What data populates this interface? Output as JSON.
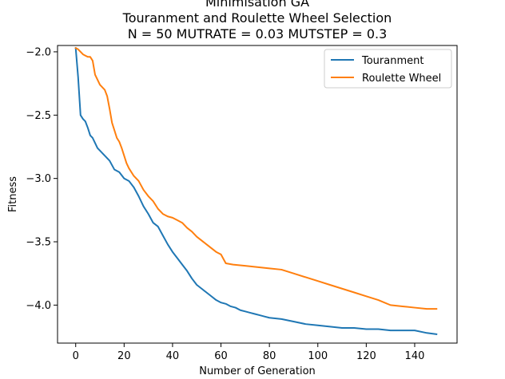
{
  "chart_data": {
    "type": "line",
    "title_lines": [
      "Minimisation GA",
      "Touranment and Roulette Wheel Selection",
      "N = 50 MUTRATE = 0.03 MUTSTEP = 0.3"
    ],
    "xlabel": "Number of Generation",
    "ylabel": "Fitness",
    "xlim": [
      -7.5,
      157.5
    ],
    "ylim": [
      -4.3,
      -1.95
    ],
    "xticks": [
      0,
      20,
      40,
      60,
      80,
      100,
      120,
      140
    ],
    "xtick_labels": [
      "0",
      "20",
      "40",
      "60",
      "80",
      "100",
      "120",
      "140"
    ],
    "yticks": [
      -2.0,
      -2.5,
      -3.0,
      -3.5,
      -4.0
    ],
    "ytick_labels": [
      "−2.0",
      "−2.5",
      "−3.0",
      "−3.5",
      "−4.0"
    ],
    "grid": false,
    "legend": "top-right",
    "series": [
      {
        "name": "Touranment",
        "color": "#1f77b4",
        "x": [
          0,
          1,
          2,
          3,
          4,
          5,
          6,
          7,
          8,
          9,
          10,
          12,
          14,
          16,
          18,
          20,
          22,
          24,
          26,
          28,
          30,
          32,
          34,
          36,
          38,
          40,
          42,
          44,
          46,
          48,
          50,
          52,
          54,
          56,
          58,
          60,
          62,
          64,
          66,
          68,
          70,
          72,
          74,
          76,
          78,
          80,
          85,
          90,
          95,
          100,
          105,
          110,
          115,
          120,
          125,
          130,
          135,
          140,
          145,
          149
        ],
        "y": [
          -1.97,
          -2.2,
          -2.5,
          -2.53,
          -2.55,
          -2.6,
          -2.66,
          -2.68,
          -2.72,
          -2.76,
          -2.78,
          -2.82,
          -2.86,
          -2.93,
          -2.95,
          -3.0,
          -3.02,
          -3.07,
          -3.14,
          -3.22,
          -3.28,
          -3.35,
          -3.38,
          -3.45,
          -3.52,
          -3.58,
          -3.63,
          -3.68,
          -3.73,
          -3.79,
          -3.84,
          -3.87,
          -3.9,
          -3.93,
          -3.96,
          -3.98,
          -3.99,
          -4.01,
          -4.02,
          -4.04,
          -4.05,
          -4.06,
          -4.07,
          -4.08,
          -4.09,
          -4.1,
          -4.11,
          -4.13,
          -4.15,
          -4.16,
          -4.17,
          -4.18,
          -4.18,
          -4.19,
          -4.19,
          -4.2,
          -4.2,
          -4.2,
          -4.22,
          -4.23
        ]
      },
      {
        "name": "Roulette Wheel",
        "color": "#ff7f0e",
        "x": [
          0,
          1,
          2,
          3,
          4,
          5,
          6,
          7,
          8,
          9,
          10,
          12,
          13,
          14,
          15,
          16,
          17,
          18,
          19,
          20,
          21,
          22,
          24,
          26,
          28,
          30,
          32,
          34,
          36,
          38,
          40,
          42,
          44,
          46,
          48,
          50,
          52,
          54,
          56,
          58,
          60,
          62,
          65,
          70,
          75,
          80,
          85,
          90,
          95,
          100,
          105,
          110,
          115,
          120,
          125,
          130,
          135,
          140,
          145,
          149
        ],
        "y": [
          -1.97,
          -1.98,
          -2.0,
          -2.02,
          -2.03,
          -2.04,
          -2.04,
          -2.07,
          -2.18,
          -2.22,
          -2.26,
          -2.3,
          -2.35,
          -2.45,
          -2.56,
          -2.62,
          -2.68,
          -2.71,
          -2.76,
          -2.82,
          -2.88,
          -2.92,
          -2.98,
          -3.02,
          -3.09,
          -3.14,
          -3.18,
          -3.24,
          -3.28,
          -3.3,
          -3.31,
          -3.33,
          -3.35,
          -3.39,
          -3.42,
          -3.46,
          -3.49,
          -3.52,
          -3.55,
          -3.58,
          -3.6,
          -3.67,
          -3.68,
          -3.69,
          -3.7,
          -3.71,
          -3.72,
          -3.75,
          -3.78,
          -3.81,
          -3.84,
          -3.87,
          -3.9,
          -3.93,
          -3.96,
          -4.0,
          -4.01,
          -4.02,
          -4.03,
          -4.03
        ]
      }
    ]
  }
}
